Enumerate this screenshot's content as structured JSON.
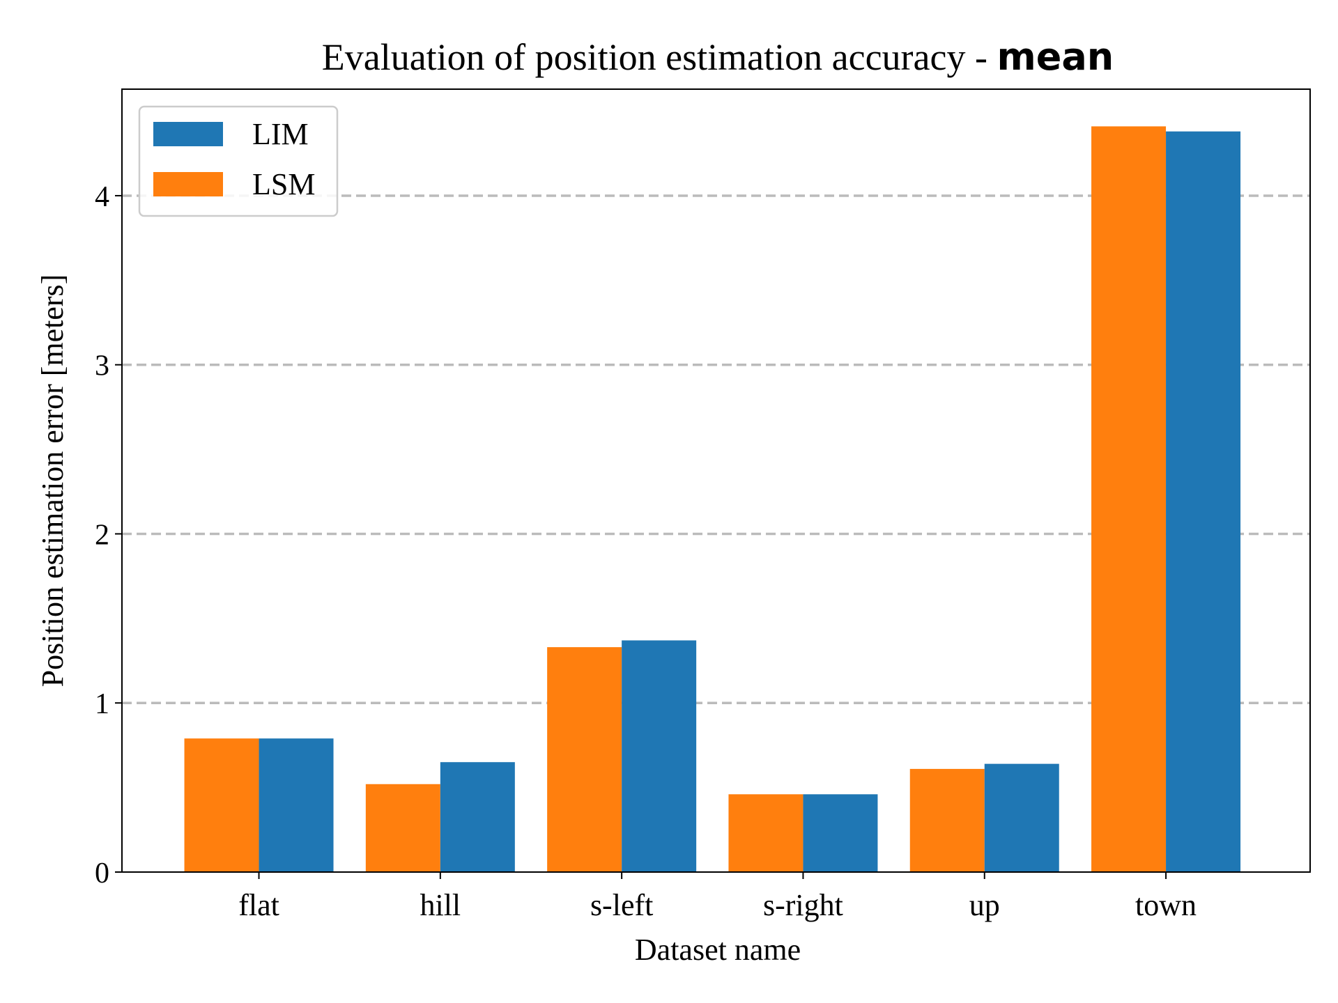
{
  "chart_data": {
    "type": "bar",
    "title": "Evaluation of position estimation accuracy - ",
    "title_emphasis": "mean",
    "xlabel": "Dataset name",
    "ylabel": "Position estimation error [meters]",
    "categories": [
      "flat",
      "hill",
      "s-left",
      "s-right",
      "up",
      "town"
    ],
    "series": [
      {
        "name": "LSM",
        "color": "#ff7f0e",
        "values": [
          0.79,
          0.52,
          1.33,
          0.46,
          0.61,
          4.41
        ]
      },
      {
        "name": "LIM",
        "color": "#1f77b4",
        "values": [
          0.79,
          0.65,
          1.37,
          0.46,
          0.64,
          4.38
        ]
      }
    ],
    "legend_order": [
      "LIM",
      "LSM"
    ],
    "legend_position": "top-left",
    "ylim": [
      0,
      4.63
    ],
    "yticks": [
      0,
      1,
      2,
      3,
      4
    ],
    "grid": "y dashed",
    "grid_color": "#bbbbbb"
  }
}
